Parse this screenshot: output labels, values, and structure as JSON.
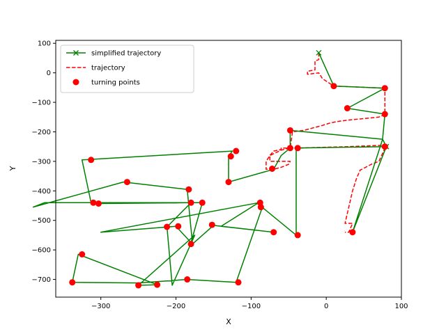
{
  "chart_data": {
    "type": "line",
    "title": "",
    "xlabel": "X",
    "ylabel": "Y",
    "xlim": [
      -360,
      100
    ],
    "ylim": [
      -760,
      110
    ],
    "xticks": [
      -300,
      -200,
      -100,
      0,
      100
    ],
    "yticks": [
      100,
      0,
      -100,
      -200,
      -300,
      -400,
      -500,
      -600,
      -700
    ],
    "grid": false,
    "legend_position": "top-left",
    "series": [
      {
        "name": "simplified trajectory",
        "style": "solid",
        "marker": "x",
        "color": "#008000",
        "x": [
          -10,
          10,
          78,
          28,
          78,
          75,
          80,
          35,
          75,
          -48,
          -48,
          -60,
          -70,
          -130,
          -130,
          -125,
          -325,
          -313,
          -303,
          -180,
          -375,
          -390,
          -270,
          -185,
          -178,
          -150,
          -70,
          -140,
          -90,
          -300,
          -200,
          -180,
          -165,
          -180,
          -212,
          -205,
          -175,
          -250,
          -225,
          -330,
          -338,
          -250,
          -185,
          -120,
          -85,
          -88,
          -40,
          -40,
          80
        ],
        "y": [
          68,
          -45,
          -52,
          -120,
          -140,
          -225,
          -250,
          -540,
          -225,
          -195,
          -255,
          -280,
          -327,
          -370,
          -283,
          -265,
          -295,
          -440,
          -443,
          -440,
          -440,
          -455,
          -370,
          -395,
          -580,
          -517,
          -540,
          -520,
          -440,
          -540,
          -520,
          -575,
          -440,
          -440,
          -522,
          -720,
          -550,
          -720,
          -718,
          -615,
          -710,
          -712,
          -700,
          -710,
          -455,
          -450,
          -550,
          -255,
          -250
        ]
      },
      {
        "name": "trajectory",
        "style": "dashed",
        "color": "#ff0000",
        "x": [
          -10,
          -10,
          -15,
          -15,
          -25,
          -25,
          -10,
          -5,
          10,
          78,
          78,
          78,
          70,
          50,
          30,
          15,
          5,
          -5,
          -30,
          -45,
          -48,
          -60,
          -75,
          -75,
          -48,
          -50,
          -60,
          -70,
          -80,
          -80,
          -75,
          -70,
          -60,
          -60,
          -40,
          30,
          80,
          70,
          60,
          45,
          40,
          35,
          25,
          35,
          30,
          25
        ],
        "y": [
          68,
          45,
          40,
          10,
          5,
          -5,
          0,
          -20,
          -45,
          -52,
          -70,
          -140,
          -150,
          -155,
          -160,
          -165,
          -170,
          -178,
          -195,
          -200,
          -255,
          -262,
          -280,
          -300,
          -300,
          -310,
          -320,
          -327,
          -327,
          -300,
          -280,
          -265,
          -260,
          -255,
          -255,
          -250,
          -245,
          -300,
          -310,
          -330,
          -360,
          -400,
          -510,
          -510,
          -540,
          -540
        ]
      },
      {
        "name": "turning points",
        "style": "none",
        "marker": "o",
        "color": "#ff0000",
        "x": [
          10,
          78,
          78,
          28,
          78,
          35,
          -48,
          -48,
          -38,
          -72,
          -127,
          -120,
          -130,
          -313,
          -310,
          -303,
          -265,
          -183,
          -180,
          -165,
          -88,
          -87,
          -152,
          -197,
          -212,
          -180,
          -70,
          -38,
          -325,
          -338,
          -250,
          -225,
          -185,
          -117,
          78
        ],
        "y": [
          -45,
          -52,
          -140,
          -120,
          -250,
          -540,
          -195,
          -255,
          -255,
          -325,
          -283,
          -265,
          -370,
          -295,
          -440,
          -443,
          -370,
          -395,
          -440,
          -440,
          -440,
          -455,
          -515,
          -520,
          -522,
          -580,
          -540,
          -550,
          -615,
          -710,
          -720,
          -718,
          -700,
          -710,
          -250
        ]
      }
    ]
  }
}
